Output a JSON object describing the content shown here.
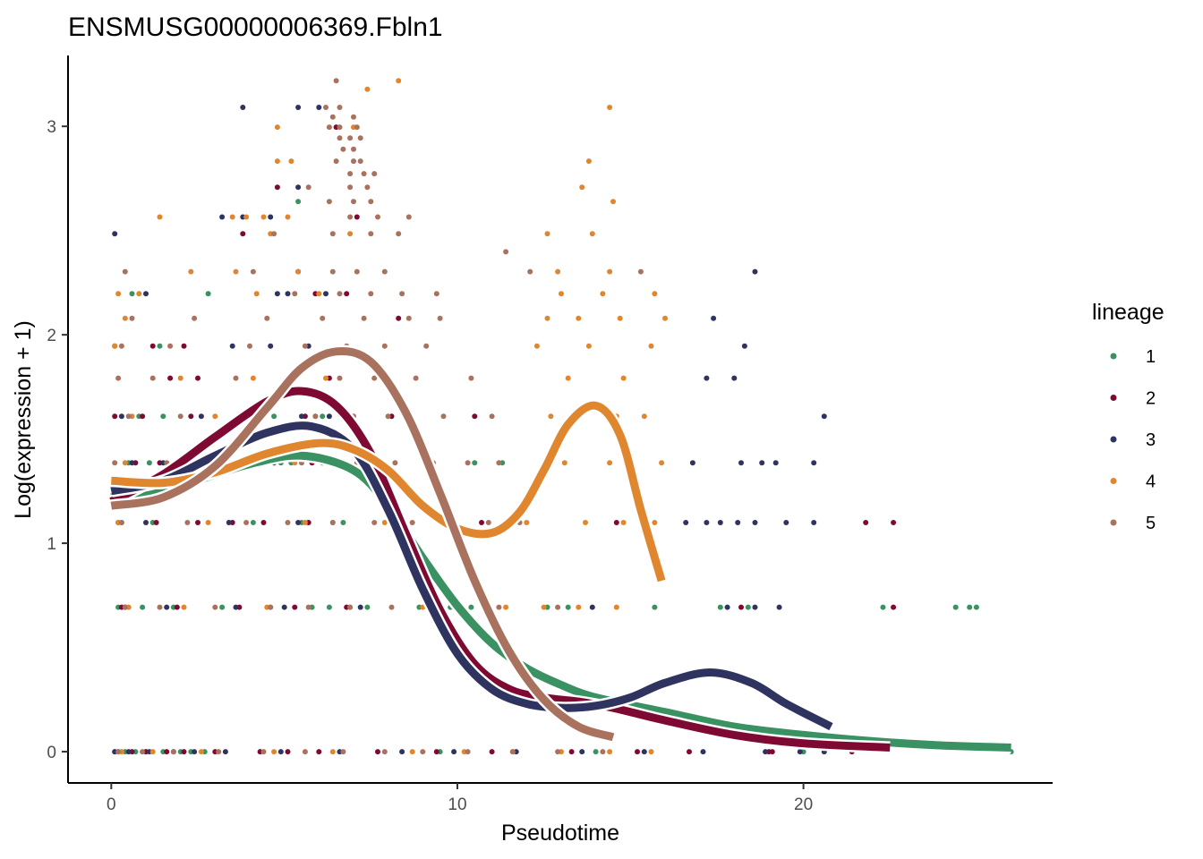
{
  "chart_data": {
    "type": "scatter",
    "title": "ENSMUSG00000006369.Fbln1",
    "xlabel": "Pseudotime",
    "ylabel": "Log(expression + 1)",
    "xlim": [
      -1.25,
      27.2
    ],
    "ylim": [
      -0.15,
      3.34
    ],
    "x_ticks": [
      0,
      10,
      20
    ],
    "y_ticks": [
      0,
      1,
      2,
      3
    ],
    "x_tick_labels": [
      "0",
      "10",
      "20"
    ],
    "y_tick_labels": [
      "0",
      "1",
      "2",
      "3"
    ],
    "grid": false,
    "legend": {
      "title": "lineage",
      "position": "right",
      "entries": [
        "1",
        "2",
        "3",
        "4",
        "5"
      ]
    },
    "colors": {
      "1": "#3a9162",
      "2": "#7e0a33",
      "3": "#2f3360",
      "4": "#df862e",
      "5": "#a8725f"
    },
    "expression_levels": [
      0,
      0.693,
      1.099,
      1.386,
      1.609,
      1.792,
      1.946,
      2.079,
      2.197,
      2.303,
      2.398,
      2.485,
      2.565,
      2.639,
      2.708,
      2.773,
      2.833,
      2.89,
      2.944,
      2.996,
      3.045,
      3.091,
      3.219
    ],
    "series": [
      {
        "name": "1",
        "color": "#3a9162",
        "curve": {
          "x": [
            0,
            2,
            4,
            5.5,
            7,
            8,
            9,
            10,
            11,
            12,
            13,
            14,
            16,
            18,
            20,
            22,
            24,
            26
          ],
          "y": [
            1.22,
            1.28,
            1.38,
            1.42,
            1.35,
            1.18,
            0.93,
            0.7,
            0.52,
            0.4,
            0.32,
            0.26,
            0.19,
            0.12,
            0.08,
            0.05,
            0.03,
            0.02
          ]
        },
        "points": {
          "x": [
            0.1,
            0.4,
            0.7,
            1.0,
            1.5,
            2.0,
            2.3,
            2.7,
            0.2,
            0.9,
            1.8,
            3.2,
            4.6,
            5.8,
            6.3,
            7.4,
            8.9,
            9.8,
            10.4,
            12.6,
            13.2,
            15.7,
            17.6,
            18.4,
            22.3,
            24.4,
            24.8,
            25.0,
            0.3,
            1.2,
            4.1,
            5.5,
            6.4,
            6.7,
            0.5,
            1.1,
            2.0,
            3.4,
            4.5,
            4.9,
            5.2,
            7.8,
            10.5,
            11.3,
            0.8,
            1.5,
            4.7,
            5.9,
            6.1,
            1.4,
            0.6,
            2.8,
            5.4,
            9.5,
            14.0,
            20.0,
            26.0
          ],
          "y": [
            0,
            0,
            0,
            0,
            0,
            0,
            0,
            0,
            0.693,
            0.693,
            0.693,
            0.693,
            0.693,
            0.693,
            0.693,
            0.693,
            0.693,
            0.693,
            0.693,
            0.693,
            0.693,
            0.693,
            0.693,
            0.693,
            0.693,
            0.693,
            0.693,
            0.693,
            1.099,
            1.099,
            1.099,
            1.099,
            1.099,
            1.099,
            1.386,
            1.386,
            1.386,
            1.386,
            1.386,
            1.386,
            1.386,
            1.386,
            1.386,
            1.386,
            1.609,
            1.609,
            1.609,
            1.609,
            1.609,
            1.946,
            2.197,
            2.197,
            2.639,
            0,
            0,
            0,
            0
          ]
        }
      },
      {
        "name": "2",
        "color": "#7e0a33",
        "curve": {
          "x": [
            0,
            1.5,
            3,
            4.5,
            5.5,
            6.5,
            7.5,
            8.5,
            9.5,
            10.5,
            11.5,
            12.5,
            13.5,
            14.5,
            16,
            18,
            20,
            22.5
          ],
          "y": [
            1.2,
            1.33,
            1.51,
            1.68,
            1.73,
            1.66,
            1.43,
            1.05,
            0.68,
            0.42,
            0.3,
            0.26,
            0.24,
            0.21,
            0.15,
            0.08,
            0.04,
            0.02
          ]
        },
        "points": {
          "x": [
            0.2,
            0.6,
            1.0,
            1.6,
            2.1,
            3.0,
            4.3,
            5.1,
            6.0,
            7.7,
            9.4,
            11.0,
            13.3,
            16.7,
            19.1,
            21.4,
            22.6,
            0.3,
            1.9,
            3.7,
            5.3,
            6.8,
            9.2,
            0.4,
            1.3,
            2.5,
            3.5,
            4.4,
            5.7,
            10.7,
            11.6,
            21.8,
            22.6,
            0.7,
            1.4,
            4.0,
            5.8,
            6.5,
            0.1,
            0.9,
            2.3,
            5.6,
            6.9,
            8.1,
            10.5,
            14.3,
            1.7,
            2.5,
            6.3,
            1.2,
            2.1,
            5.9,
            6.8,
            4.8,
            6.5,
            3.8,
            5.4,
            7.1,
            8.3,
            12.7,
            14.6,
            18.2,
            15.2,
            19.0
          ],
          "y": [
            0,
            0,
            0,
            0,
            0,
            0,
            0,
            0,
            0,
            0,
            0,
            0,
            0,
            0,
            0,
            0,
            0.693,
            0.693,
            0.693,
            0.693,
            0.693,
            0.693,
            0.693,
            0.693,
            1.099,
            1.099,
            1.099,
            1.099,
            1.099,
            1.099,
            1.099,
            1.099,
            1.099,
            1.386,
            1.386,
            1.386,
            1.386,
            1.386,
            1.609,
            1.609,
            1.609,
            1.609,
            1.609,
            1.609,
            1.609,
            1.609,
            1.792,
            1.792,
            1.792,
            1.946,
            1.946,
            2.197,
            2.197,
            2.708,
            2.996,
            2.485,
            2.303,
            2.565,
            2.079,
            1.386,
            1.099,
            0.693,
            0,
            0
          ]
        }
      },
      {
        "name": "3",
        "color": "#2f3360",
        "curve": {
          "x": [
            0,
            1.5,
            3,
            4.5,
            5.8,
            7,
            8,
            9,
            10,
            11,
            12,
            13,
            14,
            15,
            16,
            17.3,
            18.5,
            19.5,
            20.8
          ],
          "y": [
            1.25,
            1.3,
            1.42,
            1.53,
            1.56,
            1.45,
            1.16,
            0.78,
            0.47,
            0.3,
            0.23,
            0.21,
            0.22,
            0.26,
            0.33,
            0.38,
            0.33,
            0.23,
            0.12
          ]
        },
        "points": {
          "x": [
            0.1,
            0.5,
            1.1,
            1.8,
            2.4,
            3.3,
            4.9,
            6.6,
            8.4,
            9.9,
            11.7,
            13.6,
            15.4,
            17.1,
            18.9,
            19.9,
            20.6,
            0.4,
            1.6,
            3.6,
            5.0,
            7.2,
            13.9,
            17.8,
            18.6,
            19.3,
            0.2,
            1.0,
            3.4,
            5.4,
            16.6,
            17.2,
            17.6,
            18.1,
            18.6,
            19.5,
            20.3,
            0.6,
            1.5,
            3.6,
            4.7,
            6.1,
            16.8,
            18.2,
            18.8,
            19.2,
            20.3,
            0.3,
            2.6,
            5.5,
            6.3,
            20.6,
            17.2,
            18.0,
            0.1,
            3.5,
            4.6,
            5.7,
            17.4,
            18.3,
            1.0,
            4.8,
            5.1,
            6.2,
            18.6,
            3.2,
            3.8,
            4.6,
            5.4,
            6.0,
            3.8,
            5.4,
            0.1
          ],
          "y": [
            0,
            0,
            0,
            0,
            0,
            0,
            0,
            0,
            0,
            0,
            0,
            0,
            0,
            0,
            0,
            0,
            0,
            0.693,
            0.693,
            0.693,
            0.693,
            0.693,
            0.693,
            0.693,
            0.693,
            0.693,
            1.099,
            1.099,
            1.099,
            1.099,
            1.099,
            1.099,
            1.099,
            1.099,
            1.099,
            1.099,
            1.099,
            1.386,
            1.386,
            1.386,
            1.386,
            1.386,
            1.386,
            1.386,
            1.386,
            1.386,
            1.386,
            1.609,
            1.609,
            1.609,
            1.609,
            1.609,
            1.792,
            1.792,
            1.946,
            1.946,
            1.946,
            1.946,
            2.079,
            1.946,
            2.197,
            2.197,
            2.197,
            2.197,
            2.303,
            2.565,
            2.565,
            2.565,
            2.708,
            3.091,
            3.091,
            3.091,
            2.485
          ]
        }
      },
      {
        "name": "4",
        "color": "#df862e",
        "curve": {
          "x": [
            0,
            1.5,
            3,
            4.5,
            6,
            7,
            8,
            9,
            10,
            11,
            11.8,
            12.5,
            13.2,
            14,
            14.7,
            15.3,
            15.9
          ],
          "y": [
            1.3,
            1.29,
            1.34,
            1.43,
            1.48,
            1.45,
            1.35,
            1.18,
            1.07,
            1.05,
            1.15,
            1.35,
            1.57,
            1.66,
            1.52,
            1.16,
            0.82
          ]
        },
        "points": {
          "x": [
            0.3,
            1.2,
            2.6,
            4.7,
            6.4,
            8.7,
            10.2,
            11.6,
            13.0,
            14.4,
            15.6,
            0.5,
            2.1,
            4.5,
            6.9,
            9.0,
            11.4,
            12.5,
            13.5,
            14.6,
            0.2,
            2.8,
            5.6,
            7.9,
            12.0,
            13.7,
            14.8,
            15.7,
            0.4,
            3.3,
            5.3,
            13.1,
            14.4,
            15.9,
            0.6,
            3.0,
            12.7,
            13.5,
            14.6,
            15.4,
            2.0,
            4.1,
            6.2,
            13.2,
            14.8,
            0.1,
            12.3,
            13.8,
            15.6,
            0.4,
            12.6,
            13.5,
            14.7,
            16.0,
            0.8,
            4.2,
            13.0,
            14.2,
            15.7,
            2.3,
            3.6,
            5.4,
            12.9,
            14.4,
            4.6,
            6.9,
            12.6,
            13.9,
            3.5,
            4.4,
            5.1,
            14.5,
            13.6,
            13.8,
            14.4,
            8.3,
            7.4,
            5.2,
            4.8,
            1.4,
            0.2,
            7.0,
            3.9,
            6.0,
            15.0,
            4.8
          ],
          "y": [
            0,
            0,
            0,
            0,
            0,
            0,
            0,
            0,
            0,
            0,
            0,
            0.693,
            0.693,
            0.693,
            0.693,
            0.693,
            0.693,
            0.693,
            0.693,
            0.693,
            1.099,
            1.099,
            1.099,
            1.099,
            1.099,
            1.099,
            1.099,
            1.099,
            1.386,
            1.386,
            1.386,
            1.386,
            1.386,
            1.386,
            1.609,
            1.609,
            1.609,
            1.609,
            1.609,
            1.609,
            1.792,
            1.792,
            1.792,
            1.792,
            1.792,
            1.946,
            1.946,
            1.946,
            1.946,
            2.079,
            2.079,
            2.079,
            2.079,
            2.079,
            2.197,
            2.197,
            2.197,
            2.197,
            2.197,
            2.303,
            2.303,
            2.303,
            2.303,
            2.303,
            2.485,
            2.485,
            2.485,
            2.485,
            2.565,
            2.565,
            2.565,
            2.639,
            2.708,
            2.833,
            3.091,
            3.219,
            3.178,
            2.833,
            2.833,
            2.565,
            2.197,
            2.996,
            2.565,
            2.197,
            1.386,
            2.996
          ]
        }
      },
      {
        "name": "5",
        "color": "#a8725f",
        "curve": {
          "x": [
            0,
            1.5,
            3,
            4.5,
            5.5,
            6.5,
            7.5,
            8.5,
            9.5,
            10.5,
            11.5,
            12.5,
            13.5,
            14.5
          ],
          "y": [
            1.18,
            1.22,
            1.37,
            1.65,
            1.84,
            1.92,
            1.87,
            1.63,
            1.24,
            0.82,
            0.48,
            0.25,
            0.12,
            0.07
          ]
        },
        "points": {
          "x": [
            0.2,
            0.9,
            1.8,
            3.1,
            4.4,
            5.6,
            6.7,
            7.9,
            9.0,
            10.3,
            11.6,
            12.9,
            14.2,
            0.4,
            1.4,
            3.0,
            4.6,
            5.7,
            6.9,
            8.1,
            9.3,
            11.2,
            12.9,
            0.3,
            2.2,
            3.9,
            5.1,
            6.4,
            7.6,
            8.7,
            10.9,
            11.8,
            0.1,
            1.6,
            3.7,
            5.5,
            7.1,
            8.2,
            9.3,
            10.3,
            11.2,
            0.5,
            2.0,
            4.2,
            5.9,
            7.0,
            8.0,
            9.6,
            11.0,
            0.2,
            1.2,
            3.6,
            5.2,
            6.6,
            7.6,
            8.8,
            10.4,
            0.3,
            1.7,
            4.0,
            5.6,
            6.8,
            7.9,
            9.1,
            0.6,
            2.4,
            4.5,
            6.1,
            7.3,
            8.6,
            9.5,
            0.4,
            5.3,
            6.6,
            7.5,
            8.4,
            9.4,
            4.1,
            6.4,
            7.1,
            7.9,
            12.1,
            15.3,
            4.7,
            6.4,
            7.5,
            8.3,
            11.4,
            6.9,
            7.7,
            8.6,
            6.3,
            7.0,
            7.5,
            5.7,
            6.9,
            7.4,
            6.9,
            7.3,
            7.6,
            6.5,
            7.0,
            7.2,
            6.7,
            7.0,
            6.6,
            6.9,
            7.2,
            6.3,
            6.6,
            7.1,
            6.4,
            7.0,
            6.2,
            6.6,
            6.5
          ],
          "y": [
            0,
            0,
            0,
            0,
            0,
            0,
            0,
            0,
            0,
            0,
            0,
            0,
            0,
            0.693,
            0.693,
            0.693,
            0.693,
            0.693,
            0.693,
            0.693,
            0.693,
            0.693,
            0.693,
            1.099,
            1.099,
            1.099,
            1.099,
            1.099,
            1.099,
            1.099,
            1.099,
            1.099,
            1.386,
            1.386,
            1.386,
            1.386,
            1.386,
            1.386,
            1.386,
            1.386,
            1.386,
            1.609,
            1.609,
            1.609,
            1.609,
            1.609,
            1.609,
            1.609,
            1.609,
            1.792,
            1.792,
            1.792,
            1.792,
            1.792,
            1.792,
            1.792,
            1.792,
            1.946,
            1.946,
            1.946,
            1.946,
            1.946,
            1.946,
            1.946,
            2.079,
            2.079,
            2.079,
            2.079,
            2.079,
            2.079,
            2.079,
            2.303,
            2.197,
            2.197,
            2.197,
            2.197,
            2.197,
            2.303,
            2.303,
            2.303,
            2.303,
            2.303,
            2.303,
            2.485,
            2.485,
            2.485,
            2.485,
            2.398,
            2.565,
            2.565,
            2.565,
            2.639,
            2.639,
            2.639,
            2.708,
            2.708,
            2.708,
            2.773,
            2.773,
            2.773,
            2.833,
            2.833,
            2.833,
            2.89,
            2.89,
            2.944,
            2.944,
            2.944,
            2.996,
            2.996,
            2.996,
            3.045,
            3.045,
            3.091,
            3.091,
            3.219
          ]
        }
      }
    ]
  }
}
